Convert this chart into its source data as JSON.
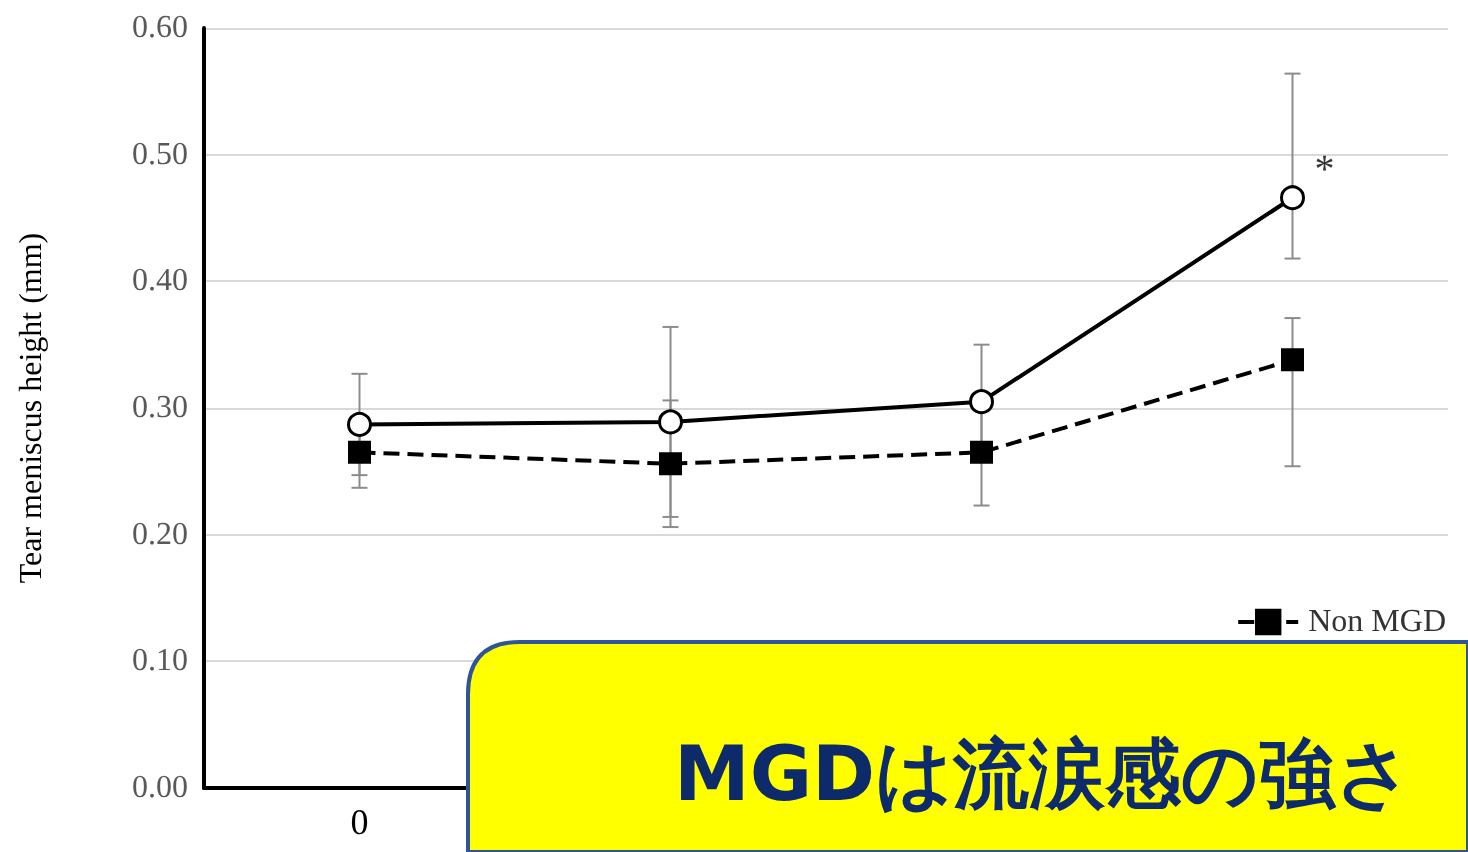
{
  "chart_data": {
    "type": "line",
    "ylabel": "Tear meniscus height (mm)",
    "categories": [
      "0",
      null,
      null,
      null
    ],
    "series": [
      {
        "color": "#000000",
        "marker": "circle",
        "line_style": "solid",
        "values": [
          0.287,
          0.289,
          0.305,
          0.466
        ],
        "errors": [
          0.04,
          0.075,
          0.045,
          [
            0.418,
            0.564
          ]
        ]
      },
      {
        "name": "Non MGD",
        "color": "#000000",
        "marker": "square",
        "line_style": "dashed",
        "values": [
          0.265,
          0.256,
          0.265,
          0.338
        ],
        "errors": [
          0.028,
          0.05,
          0.042,
          [
            0.254,
            0.371
          ]
        ]
      }
    ],
    "ylim": [
      0,
      0.6
    ],
    "yticks": [
      {
        "value": 0,
        "label": "0.00"
      },
      {
        "value": 0.1,
        "label": "0.10"
      },
      {
        "value": 0.2,
        "label": "0.20"
      },
      {
        "value": 0.3,
        "label": "0.30"
      },
      {
        "value": 0.4,
        "label": "0.40"
      },
      {
        "value": 0.5,
        "label": "0.50"
      },
      {
        "value": 0.6,
        "label": "0.60"
      }
    ],
    "grid": "y",
    "legend": "bottom right",
    "annotations": [
      "*",
      "MGDは流涙感の強さ"
    ]
  }
}
